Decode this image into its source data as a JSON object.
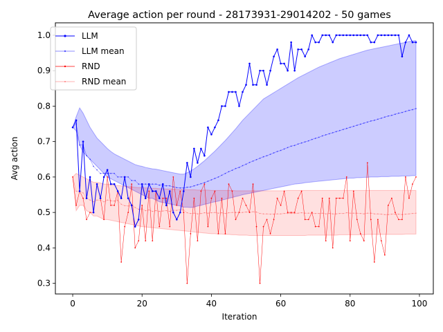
{
  "chart_data": {
    "type": "line",
    "title": "Average action per round - 28173931-29014202 - 50 games",
    "xlabel": "Iteration",
    "ylabel": "Avg action",
    "xlim": [
      -5,
      104
    ],
    "ylim": [
      0.27,
      1.035
    ],
    "xticks": [
      0,
      20,
      40,
      60,
      80,
      100
    ],
    "yticks": [
      0.3,
      0.4,
      0.5,
      0.6,
      0.7,
      0.8,
      0.9,
      1.0
    ],
    "legend_position": "top-left",
    "colors": {
      "llm": "#0000ff",
      "llm_band": "#0000ff",
      "rnd": "#ff0000",
      "rnd_band": "#ff0000"
    },
    "x": [
      0,
      1,
      2,
      3,
      4,
      5,
      6,
      7,
      8,
      9,
      10,
      11,
      12,
      13,
      14,
      15,
      16,
      17,
      18,
      19,
      20,
      21,
      22,
      23,
      24,
      25,
      26,
      27,
      28,
      29,
      30,
      31,
      32,
      33,
      34,
      35,
      36,
      37,
      38,
      39,
      40,
      41,
      42,
      43,
      44,
      45,
      46,
      47,
      48,
      49,
      50,
      51,
      52,
      53,
      54,
      55,
      56,
      57,
      58,
      59,
      60,
      61,
      62,
      63,
      64,
      65,
      66,
      67,
      68,
      69,
      70,
      71,
      72,
      73,
      74,
      75,
      76,
      77,
      78,
      79,
      80,
      81,
      82,
      83,
      84,
      85,
      86,
      87,
      88,
      89,
      90,
      91,
      92,
      93,
      94,
      95,
      96,
      97,
      98,
      99
    ],
    "series": [
      {
        "name": "LLM",
        "values": [
          0.74,
          0.76,
          0.56,
          0.7,
          0.54,
          0.6,
          0.5,
          0.58,
          0.54,
          0.6,
          0.62,
          0.58,
          0.58,
          0.56,
          0.54,
          0.6,
          0.54,
          0.52,
          0.46,
          0.48,
          0.58,
          0.54,
          0.58,
          0.56,
          0.56,
          0.54,
          0.58,
          0.52,
          0.56,
          0.5,
          0.48,
          0.5,
          0.56,
          0.64,
          0.6,
          0.68,
          0.64,
          0.68,
          0.66,
          0.74,
          0.72,
          0.74,
          0.76,
          0.8,
          0.8,
          0.84,
          0.84,
          0.84,
          0.8,
          0.84,
          0.86,
          0.92,
          0.86,
          0.86,
          0.9,
          0.9,
          0.86,
          0.9,
          0.94,
          0.96,
          0.92,
          0.92,
          0.9,
          0.98,
          0.9,
          0.96,
          0.96,
          0.94,
          0.96,
          1.0,
          0.98,
          0.98,
          1.0,
          1.0,
          1.0,
          0.98,
          1.0,
          1.0,
          1.0,
          1.0,
          1.0,
          1.0,
          1.0,
          1.0,
          1.0,
          1.0,
          0.98,
          0.98,
          1.0,
          1.0,
          1.0,
          1.0,
          1.0,
          1.0,
          1.0,
          0.94,
          0.98,
          1.0,
          0.98,
          0.98
        ]
      },
      {
        "name": "LLM mean",
        "values": [
          0.74,
          0.75,
          0.69,
          0.69,
          0.66,
          0.65,
          0.63,
          0.62,
          0.61,
          0.61,
          0.61,
          0.61,
          0.61,
          0.6,
          0.6,
          0.6,
          0.6,
          0.59,
          0.59,
          0.58,
          0.58,
          0.58,
          0.58,
          0.58,
          0.58,
          0.577,
          0.577,
          0.575,
          0.575,
          0.572,
          0.57,
          0.569,
          0.569,
          0.571,
          0.572,
          0.575,
          0.578,
          0.581,
          0.584,
          0.588,
          0.592,
          0.596,
          0.6,
          0.605,
          0.61,
          0.615,
          0.619,
          0.624,
          0.627,
          0.632,
          0.636,
          0.641,
          0.645,
          0.649,
          0.653,
          0.657,
          0.66,
          0.664,
          0.668,
          0.672,
          0.675,
          0.679,
          0.683,
          0.687,
          0.689,
          0.693,
          0.696,
          0.699,
          0.702,
          0.706,
          0.709,
          0.712,
          0.716,
          0.719,
          0.722,
          0.725,
          0.728,
          0.731,
          0.734,
          0.737,
          0.74,
          0.743,
          0.746,
          0.749,
          0.752,
          0.755,
          0.758,
          0.76,
          0.763,
          0.766,
          0.769,
          0.772,
          0.774,
          0.777,
          0.78,
          0.782,
          0.785,
          0.788,
          0.79,
          0.793
        ]
      },
      {
        "name": "RND",
        "values": [
          0.6,
          0.52,
          0.56,
          0.54,
          0.48,
          0.5,
          0.5,
          0.58,
          0.54,
          0.48,
          0.6,
          0.52,
          0.52,
          0.56,
          0.36,
          0.46,
          0.5,
          0.58,
          0.4,
          0.42,
          0.52,
          0.42,
          0.56,
          0.42,
          0.56,
          0.46,
          0.54,
          0.54,
          0.46,
          0.6,
          0.52,
          0.56,
          0.5,
          0.3,
          0.44,
          0.54,
          0.42,
          0.56,
          0.58,
          0.46,
          0.54,
          0.56,
          0.44,
          0.54,
          0.44,
          0.58,
          0.56,
          0.48,
          0.5,
          0.54,
          0.52,
          0.5,
          0.58,
          0.46,
          0.3,
          0.46,
          0.48,
          0.44,
          0.48,
          0.54,
          0.52,
          0.56,
          0.5,
          0.5,
          0.5,
          0.54,
          0.56,
          0.48,
          0.48,
          0.5,
          0.46,
          0.46,
          0.54,
          0.42,
          0.54,
          0.4,
          0.54,
          0.54,
          0.54,
          0.6,
          0.42,
          0.56,
          0.48,
          0.44,
          0.42,
          0.64,
          0.48,
          0.36,
          0.48,
          0.42,
          0.38,
          0.52,
          0.54,
          0.5,
          0.48,
          0.48,
          0.6,
          0.54,
          0.58,
          0.6
        ]
      },
      {
        "name": "RND mean",
        "values": [
          0.6,
          0.56,
          0.56,
          0.555,
          0.54,
          0.535,
          0.53,
          0.535,
          0.535,
          0.53,
          0.535,
          0.533,
          0.532,
          0.534,
          0.523,
          0.519,
          0.518,
          0.521,
          0.514,
          0.509,
          0.51,
          0.505,
          0.507,
          0.503,
          0.505,
          0.503,
          0.504,
          0.505,
          0.503,
          0.506,
          0.506,
          0.507,
          0.507,
          0.499,
          0.497,
          0.498,
          0.496,
          0.497,
          0.499,
          0.498,
          0.499,
          0.5,
          0.498,
          0.499,
          0.497,
          0.499,
          0.5,
          0.5,
          0.5,
          0.5,
          0.501,
          0.501,
          0.502,
          0.501,
          0.497,
          0.496,
          0.496,
          0.495,
          0.495,
          0.496,
          0.496,
          0.497,
          0.497,
          0.497,
          0.497,
          0.498,
          0.499,
          0.498,
          0.498,
          0.498,
          0.497,
          0.497,
          0.498,
          0.496,
          0.497,
          0.496,
          0.496,
          0.497,
          0.497,
          0.499,
          0.498,
          0.498,
          0.498,
          0.497,
          0.496,
          0.498,
          0.498,
          0.496,
          0.496,
          0.495,
          0.494,
          0.494,
          0.495,
          0.495,
          0.495,
          0.494,
          0.495,
          0.496,
          0.497,
          0.498
        ]
      }
    ],
    "bands": [
      {
        "series": "LLM mean",
        "lower": [
          0.74,
          0.73,
          0.69,
          0.67,
          0.66,
          0.65,
          0.64,
          0.63,
          0.62,
          0.61,
          0.6,
          0.595,
          0.59,
          0.585,
          0.58,
          0.575,
          0.57,
          0.565,
          0.56,
          0.555,
          0.55,
          0.545,
          0.54,
          0.54,
          0.535,
          0.53,
          0.528,
          0.526,
          0.524,
          0.522,
          0.52,
          0.518,
          0.515,
          0.515,
          0.514,
          0.515,
          0.518,
          0.52,
          0.523,
          0.525,
          0.528,
          0.53,
          0.532,
          0.535,
          0.537,
          0.54,
          0.542,
          0.545,
          0.547,
          0.55,
          0.552,
          0.554,
          0.556,
          0.558,
          0.56,
          0.562,
          0.564,
          0.566,
          0.568,
          0.57,
          0.572,
          0.574,
          0.576,
          0.578,
          0.58,
          0.581,
          0.582,
          0.584,
          0.585,
          0.586,
          0.587,
          0.588,
          0.589,
          0.59,
          0.591,
          0.592,
          0.593,
          0.594,
          0.595,
          0.596,
          0.597,
          0.597,
          0.598,
          0.598,
          0.599,
          0.599,
          0.6,
          0.6,
          0.6,
          0.601,
          0.601,
          0.601,
          0.602,
          0.602,
          0.602,
          0.603,
          0.603,
          0.603,
          0.604,
          0.604
        ],
        "upper": [
          0.74,
          0.77,
          0.795,
          0.78,
          0.76,
          0.74,
          0.725,
          0.71,
          0.7,
          0.69,
          0.68,
          0.672,
          0.665,
          0.66,
          0.655,
          0.65,
          0.645,
          0.64,
          0.635,
          0.632,
          0.63,
          0.627,
          0.625,
          0.623,
          0.622,
          0.62,
          0.618,
          0.616,
          0.614,
          0.612,
          0.61,
          0.608,
          0.608,
          0.612,
          0.617,
          0.623,
          0.63,
          0.638,
          0.646,
          0.655,
          0.664,
          0.673,
          0.683,
          0.693,
          0.703,
          0.714,
          0.725,
          0.736,
          0.748,
          0.76,
          0.77,
          0.78,
          0.79,
          0.8,
          0.81,
          0.82,
          0.826,
          0.832,
          0.838,
          0.844,
          0.85,
          0.856,
          0.862,
          0.868,
          0.874,
          0.88,
          0.885,
          0.89,
          0.895,
          0.9,
          0.905,
          0.91,
          0.914,
          0.918,
          0.922,
          0.926,
          0.93,
          0.934,
          0.937,
          0.94,
          0.943,
          0.946,
          0.949,
          0.952,
          0.955,
          0.958,
          0.96,
          0.962,
          0.964,
          0.966,
          0.968,
          0.97,
          0.972,
          0.974,
          0.976,
          0.978,
          0.98,
          0.982,
          0.984,
          0.985
        ]
      },
      {
        "series": "RND mean",
        "lower": [
          0.6,
          0.505,
          0.52,
          0.52,
          0.505,
          0.5,
          0.49,
          0.49,
          0.485,
          0.48,
          0.48,
          0.478,
          0.476,
          0.474,
          0.472,
          0.47,
          0.468,
          0.466,
          0.464,
          0.462,
          0.46,
          0.459,
          0.458,
          0.457,
          0.456,
          0.455,
          0.454,
          0.453,
          0.452,
          0.451,
          0.45,
          0.449,
          0.448,
          0.447,
          0.446,
          0.445,
          0.444,
          0.443,
          0.442,
          0.441,
          0.44,
          0.44,
          0.439,
          0.439,
          0.438,
          0.438,
          0.437,
          0.437,
          0.436,
          0.436,
          0.436,
          0.435,
          0.435,
          0.435,
          0.435,
          0.435,
          0.435,
          0.435,
          0.435,
          0.435,
          0.435,
          0.435,
          0.435,
          0.435,
          0.435,
          0.435,
          0.435,
          0.435,
          0.436,
          0.436,
          0.436,
          0.436,
          0.436,
          0.436,
          0.436,
          0.436,
          0.436,
          0.437,
          0.437,
          0.437,
          0.437,
          0.437,
          0.437,
          0.437,
          0.437,
          0.438,
          0.438,
          0.438,
          0.438,
          0.438,
          0.438,
          0.438,
          0.438,
          0.438,
          0.438,
          0.438,
          0.439,
          0.439,
          0.439,
          0.439
        ],
        "upper": [
          0.6,
          0.61,
          0.605,
          0.6,
          0.595,
          0.59,
          0.585,
          0.585,
          0.583,
          0.58,
          0.58,
          0.578,
          0.577,
          0.576,
          0.575,
          0.574,
          0.573,
          0.572,
          0.571,
          0.57,
          0.57,
          0.569,
          0.569,
          0.568,
          0.568,
          0.567,
          0.567,
          0.566,
          0.566,
          0.566,
          0.565,
          0.565,
          0.565,
          0.564,
          0.564,
          0.564,
          0.563,
          0.563,
          0.563,
          0.563,
          0.562,
          0.562,
          0.562,
          0.562,
          0.562,
          0.562,
          0.562,
          0.561,
          0.561,
          0.561,
          0.561,
          0.561,
          0.561,
          0.561,
          0.561,
          0.561,
          0.561,
          0.561,
          0.561,
          0.561,
          0.561,
          0.561,
          0.562,
          0.562,
          0.562,
          0.562,
          0.562,
          0.562,
          0.562,
          0.562,
          0.562,
          0.562,
          0.562,
          0.562,
          0.562,
          0.562,
          0.562,
          0.562,
          0.562,
          0.562,
          0.562,
          0.562,
          0.562,
          0.562,
          0.562,
          0.562,
          0.562,
          0.562,
          0.562,
          0.562,
          0.562,
          0.562,
          0.562,
          0.562,
          0.562,
          0.562,
          0.562,
          0.562,
          0.562,
          0.562
        ]
      }
    ]
  }
}
